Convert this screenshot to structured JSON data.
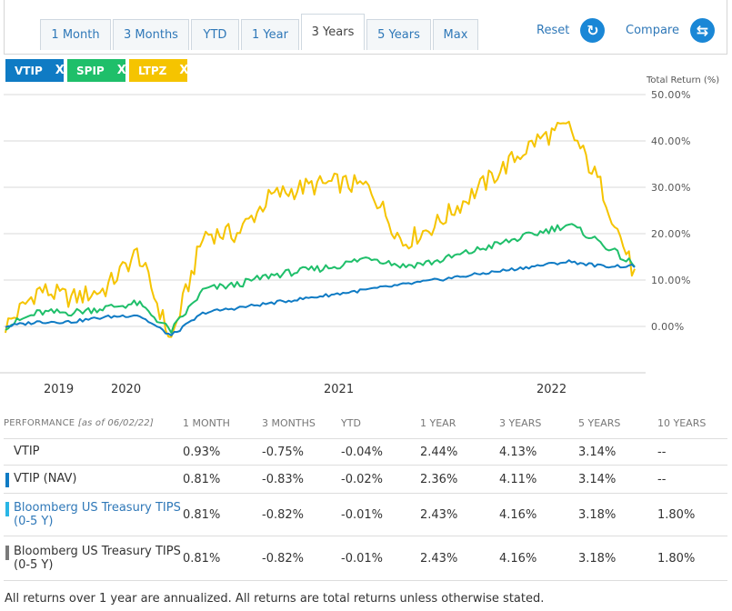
{
  "tabs": [
    "1 Month",
    "3 Months",
    "YTD",
    "1 Year",
    "3 Years",
    "5 Years",
    "Max"
  ],
  "active_tab": "3 Years",
  "reset_label": "Reset",
  "compare_label": "Compare",
  "chips": [
    {
      "label": "VTIP",
      "color": "#0f7bc4"
    },
    {
      "label": "SPIP",
      "color": "#1fbf6a"
    },
    {
      "label": "LTPZ",
      "color": "#f5c400"
    }
  ],
  "chip_close": "X",
  "chart_data": {
    "type": "line",
    "ylabel": "Total Return (%)",
    "ylim": [
      -10,
      50
    ],
    "yticks": [
      "50.00%",
      "40.00%",
      "30.00%",
      "20.00%",
      "10.00%",
      "0.00%"
    ],
    "xticks": [
      "2019",
      "2020",
      "2021",
      "2022"
    ],
    "x": [
      "2019-06",
      "2019-08",
      "2019-10",
      "2019-12",
      "2020-02",
      "2020-03",
      "2020-04",
      "2020-06",
      "2020-08",
      "2020-10",
      "2020-12",
      "2021-02",
      "2021-04",
      "2021-06",
      "2021-08",
      "2021-10",
      "2021-12",
      "2022-02",
      "2022-04",
      "2022-06"
    ],
    "series": [
      {
        "name": "VTIP",
        "color": "#0f7bc4",
        "values": [
          0,
          1,
          1,
          2,
          2.5,
          -2,
          3,
          4,
          5,
          6,
          7,
          8,
          9,
          10,
          11,
          12,
          13,
          14,
          13,
          13
        ]
      },
      {
        "name": "SPIP",
        "color": "#1fbf6a",
        "values": [
          0,
          3,
          3,
          4,
          5,
          -1,
          8,
          9,
          11,
          12,
          13,
          15,
          13,
          14,
          16,
          18,
          20,
          22,
          18,
          13
        ]
      },
      {
        "name": "LTPZ",
        "color": "#f5c400",
        "values": [
          0,
          8,
          6,
          8,
          16,
          -3,
          20,
          20,
          28,
          30,
          31,
          30,
          18,
          22,
          28,
          34,
          40,
          43,
          30,
          11
        ]
      }
    ]
  },
  "performance": {
    "header": {
      "title": "PERFORMANCE",
      "asof": "[as of 06/02/22]"
    },
    "columns": [
      "1 MONTH",
      "3 MONTHS",
      "YTD",
      "1 YEAR",
      "3 YEARS",
      "5 YEARS",
      "10 YEARS"
    ],
    "rows": [
      {
        "name": "VTIP",
        "bar": "",
        "link": false,
        "values": [
          "0.93%",
          "-0.75%",
          "-0.04%",
          "2.44%",
          "4.13%",
          "3.14%",
          "--"
        ]
      },
      {
        "name": "VTIP (NAV)",
        "bar": "#0f7bc4",
        "link": false,
        "values": [
          "0.81%",
          "-0.83%",
          "-0.02%",
          "2.36%",
          "4.11%",
          "3.14%",
          "--"
        ]
      },
      {
        "name": "Bloomberg US Treasury TIPS (0-5 Y)",
        "bar": "#29b6e6",
        "link": true,
        "values": [
          "0.81%",
          "-0.82%",
          "-0.01%",
          "2.43%",
          "4.16%",
          "3.18%",
          "1.80%"
        ]
      },
      {
        "name": "Bloomberg US Treasury TIPS (0-5 Y)",
        "bar": "#7a7a7a",
        "link": false,
        "values": [
          "0.81%",
          "-0.82%",
          "-0.01%",
          "2.43%",
          "4.16%",
          "3.18%",
          "1.80%"
        ]
      }
    ]
  },
  "footnote": "All returns over 1 year are annualized. All returns are total returns unless otherwise stated."
}
